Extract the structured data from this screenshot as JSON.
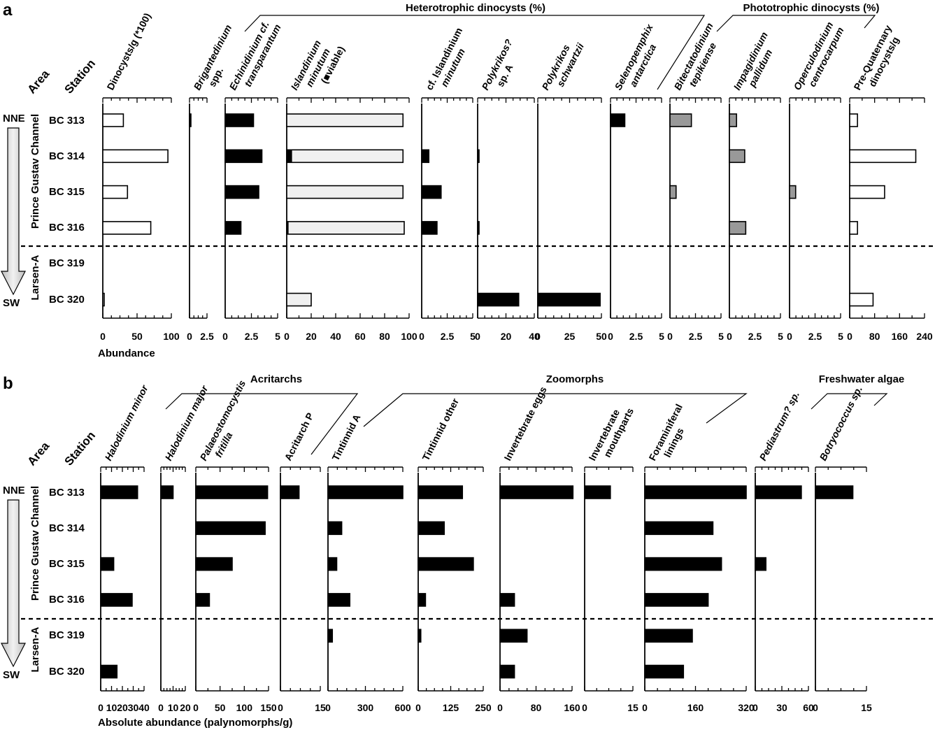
{
  "panels": [
    {
      "panel_label": "a",
      "row_top": 172,
      "row_step": 51.3,
      "separator_after_row": 4,
      "axis_title": "Abundance",
      "headers": {
        "area": "Area",
        "station": "Station"
      },
      "stations": [
        "BC 313",
        "BC 314",
        "BC 315",
        "BC 316",
        "BC 319",
        "BC 320"
      ],
      "areas": {
        "top": "NNE",
        "bottom": "SW",
        "upper_region": "Prince Gustav Channel",
        "lower_region": "Larsen-A"
      },
      "groups": [
        {
          "label": "Heterotrophic dinocysts (%)"
        },
        {
          "label": "Phototrophic dinocysts (%)"
        }
      ],
      "chart_data": [
        {
          "type": "bar",
          "title_lines": [
            "Dinocysts/g (*100)"
          ],
          "italic": false,
          "xlim": [
            0,
            100
          ],
          "ticks": [
            "0",
            "50",
            "100"
          ],
          "values": [
            30,
            95,
            36,
            70,
            null,
            1
          ],
          "fill": "#ffffff"
        },
        {
          "type": "bar",
          "title_lines": [
            "Brigantedinium",
            "spp."
          ],
          "italic_lines": [
            true,
            false
          ],
          "xlim": [
            0,
            2.5
          ],
          "ticks": [
            "0",
            "2.5"
          ],
          "values": [
            0.1,
            null,
            null,
            null,
            null,
            null
          ],
          "fill": "#000000"
        },
        {
          "type": "bar",
          "title_lines": [
            "Echinidinium cf.",
            "transparantum"
          ],
          "italic_lines": [
            true,
            true
          ],
          "xlim": [
            0,
            5
          ],
          "ticks": [
            "0",
            "2.5",
            "5"
          ],
          "values": [
            2.7,
            3.5,
            3.2,
            1.5,
            null,
            null
          ],
          "fill": "#000000"
        },
        {
          "type": "bar",
          "title_lines": [
            "Islandinium",
            "minutum",
            "( viable)"
          ],
          "italic_lines": [
            true,
            true,
            false
          ],
          "xlim": [
            0,
            100
          ],
          "ticks": [
            "0",
            "20",
            "40",
            "60",
            "80",
            "100"
          ],
          "values": [
            95,
            95,
            95,
            96,
            null,
            20
          ],
          "viable_values": [
            null,
            4,
            null,
            1,
            null,
            null
          ],
          "fill": "#f0f0f0"
        },
        {
          "type": "bar",
          "title_lines": [
            "cf. Islandinium",
            "minutum"
          ],
          "italic_lines": [
            false,
            true
          ],
          "xlim": [
            0,
            5
          ],
          "ticks": [
            "0",
            "2.5",
            "5"
          ],
          "values": [
            null,
            0.7,
            1.9,
            1.5,
            null,
            null
          ],
          "fill": "#000000"
        },
        {
          "type": "bar",
          "title_lines": [
            "Polykrikos?",
            "sp. A"
          ],
          "italic_lines": [
            true,
            false
          ],
          "xlim": [
            0,
            40
          ],
          "ticks": [
            "0",
            "20",
            "40"
          ],
          "values": [
            null,
            0.6,
            null,
            0.5,
            null,
            29
          ],
          "fill": "#000000"
        },
        {
          "type": "bar",
          "title_lines": [
            "Polykrikos",
            "schwartzii"
          ],
          "italic_lines": [
            true,
            true
          ],
          "xlim": [
            0,
            50
          ],
          "ticks": [
            "0",
            "25",
            "50"
          ],
          "values": [
            null,
            null,
            null,
            null,
            null,
            49
          ],
          "fill": "#000000"
        },
        {
          "type": "bar",
          "title_lines": [
            "Selenopemphix",
            "antarctica"
          ],
          "italic_lines": [
            true,
            true
          ],
          "xlim": [
            0,
            5
          ],
          "ticks": [
            "0",
            "2.5",
            "5"
          ],
          "values": [
            1.4,
            null,
            null,
            null,
            null,
            null
          ],
          "fill": "#000000"
        },
        {
          "type": "bar",
          "title_lines": [
            "Bitectatodinium",
            "tepikiense"
          ],
          "italic_lines": [
            true,
            true
          ],
          "xlim": [
            0,
            5
          ],
          "ticks": [
            "0",
            "2.5",
            "5"
          ],
          "values": [
            2.1,
            null,
            0.6,
            null,
            null,
            null
          ],
          "fill": "#999999"
        },
        {
          "type": "bar",
          "title_lines": [
            "Impagidinium",
            "pallidum"
          ],
          "italic_lines": [
            true,
            true
          ],
          "xlim": [
            0,
            5
          ],
          "ticks": [
            "0",
            "2.5",
            "5"
          ],
          "values": [
            0.7,
            1.5,
            null,
            1.6,
            null,
            null
          ],
          "fill": "#999999"
        },
        {
          "type": "bar",
          "title_lines": [
            "Operculodinium",
            "centrocarpum"
          ],
          "italic_lines": [
            true,
            true
          ],
          "xlim": [
            0,
            5
          ],
          "ticks": [
            "0",
            "2.5",
            "5"
          ],
          "values": [
            null,
            null,
            0.6,
            null,
            null,
            null
          ],
          "fill": "#999999"
        },
        {
          "type": "bar",
          "title_lines": [
            "Pre-Quaternary",
            "dinocysts/g"
          ],
          "italic_lines": [
            false,
            false
          ],
          "xlim": [
            0,
            240
          ],
          "ticks": [
            "0",
            "80",
            "160",
            "240"
          ],
          "values": [
            25,
            212,
            112,
            25,
            null,
            75
          ],
          "fill": "#ffffff"
        }
      ]
    },
    {
      "panel_label": "b",
      "row_top": 704,
      "row_step": 51.3,
      "separator_after_row": 4,
      "axis_title": "Absolute abundance (palynomorphs/g)",
      "headers": {
        "area": "Area",
        "station": "Station"
      },
      "stations": [
        "BC 313",
        "BC 314",
        "BC 315",
        "BC 316",
        "BC 319",
        "BC 320"
      ],
      "areas": {
        "top": "NNE",
        "bottom": "SW",
        "upper_region": "Prince Gustav Channel",
        "lower_region": "Larsen-A"
      },
      "groups": [
        {
          "label": "Acritarchs"
        },
        {
          "label": "Zoomorphs"
        },
        {
          "label": "Freshwater algae"
        }
      ],
      "chart_data": [
        {
          "type": "bar",
          "title_lines": [
            "Halodinium minor"
          ],
          "italic_lines": [
            true
          ],
          "xlim": [
            0,
            40
          ],
          "ticks": [
            "0",
            "10",
            "20",
            "30",
            "40"
          ],
          "values": [
            34,
            null,
            12,
            29,
            null,
            15
          ],
          "fill": "#000000"
        },
        {
          "type": "bar",
          "title_lines": [
            "Halodinium major"
          ],
          "italic_lines": [
            true
          ],
          "xlim": [
            0,
            20
          ],
          "ticks": [
            "0",
            "10",
            "20"
          ],
          "values": [
            10,
            null,
            null,
            null,
            null,
            null
          ],
          "fill": "#000000"
        },
        {
          "type": "bar",
          "title_lines": [
            "Palaeostomocystis",
            "fritilla"
          ],
          "italic_lines": [
            true,
            true
          ],
          "xlim": [
            0,
            150
          ],
          "ticks": [
            "0",
            "50",
            "100",
            "150"
          ],
          "values": [
            148,
            143,
            75,
            28,
            null,
            null
          ],
          "fill": "#000000"
        },
        {
          "type": "bar",
          "title_lines": [
            "Acritarch P"
          ],
          "italic_lines": [
            false
          ],
          "xlim": [
            0,
            15
          ],
          "ticks": [
            "0",
            "15"
          ],
          "values": [
            7,
            null,
            null,
            null,
            null,
            null
          ],
          "fill": "#000000"
        },
        {
          "type": "bar",
          "title_lines": [
            "Tintinnid A"
          ],
          "italic_lines": [
            false
          ],
          "xlim": [
            0,
            600
          ],
          "ticks": [
            "0",
            "300",
            "600"
          ],
          "values": [
            600,
            110,
            70,
            175,
            35,
            null
          ],
          "fill": "#000000"
        },
        {
          "type": "bar",
          "title_lines": [
            "Tintinnid other"
          ],
          "italic_lines": [
            false
          ],
          "xlim": [
            0,
            250
          ],
          "ticks": [
            "0",
            "125",
            "250"
          ],
          "values": [
            170,
            100,
            212,
            28,
            10,
            null
          ],
          "fill": "#000000"
        },
        {
          "type": "bar",
          "title_lines": [
            "Invertebrate eggs"
          ],
          "italic_lines": [
            false
          ],
          "xlim": [
            0,
            160
          ],
          "ticks": [
            "0",
            "80",
            "160"
          ],
          "values": [
            162,
            null,
            null,
            32,
            60,
            32
          ],
          "fill": "#000000"
        },
        {
          "type": "bar",
          "title_lines": [
            "Invertebrate",
            "mouthparts"
          ],
          "italic_lines": [
            false,
            false
          ],
          "xlim": [
            0,
            15
          ],
          "ticks": [
            "0",
            "15"
          ],
          "values": [
            8,
            null,
            null,
            null,
            null,
            null
          ],
          "fill": "#000000"
        },
        {
          "type": "bar",
          "title_lines": [
            "Foraminiferal",
            "linings"
          ],
          "italic_lines": [
            false,
            false
          ],
          "xlim": [
            0,
            320
          ],
          "ticks": [
            "0",
            "160",
            "320"
          ],
          "values": [
            320,
            215,
            242,
            200,
            150,
            122
          ],
          "fill": "#000000"
        },
        {
          "type": "bar",
          "title_lines": [
            "Pediastrum? sp."
          ],
          "italic_lines": [
            true
          ],
          "xlim": [
            0,
            60
          ],
          "ticks": [
            "0",
            "30",
            "60"
          ],
          "values": [
            52,
            null,
            12,
            null,
            null,
            null
          ],
          "fill": "#000000"
        },
        {
          "type": "bar",
          "title_lines": [
            "Botryococcus sp."
          ],
          "italic_lines": [
            true
          ],
          "xlim": [
            0,
            15
          ],
          "ticks": [
            "0",
            "15"
          ],
          "values": [
            11,
            null,
            null,
            null,
            null,
            null
          ],
          "fill": "#000000"
        }
      ]
    }
  ]
}
